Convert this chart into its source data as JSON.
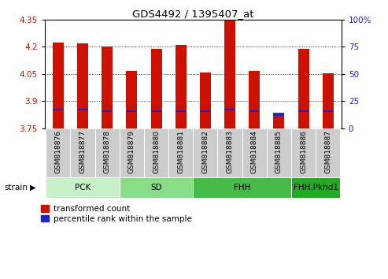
{
  "title": "GDS4492 / 1395407_at",
  "samples": [
    "GSM818876",
    "GSM818877",
    "GSM818878",
    "GSM818879",
    "GSM818880",
    "GSM818881",
    "GSM818882",
    "GSM818883",
    "GSM818884",
    "GSM818885",
    "GSM818886",
    "GSM818887"
  ],
  "red_values": [
    4.225,
    4.22,
    4.2,
    4.065,
    4.19,
    4.21,
    4.06,
    4.345,
    4.065,
    3.835,
    4.19,
    4.055
  ],
  "blue_values": [
    3.855,
    3.855,
    3.845,
    3.845,
    3.845,
    3.845,
    3.845,
    3.855,
    3.845,
    3.825,
    3.845,
    3.845
  ],
  "ymin": 3.75,
  "ymax": 4.35,
  "yticks_left": [
    3.75,
    3.9,
    4.05,
    4.2,
    4.35
  ],
  "yticks_right_vals": [
    0,
    25,
    50,
    75,
    100
  ],
  "yticks_right_labels": [
    "0",
    "25",
    "50",
    "75",
    "100%"
  ],
  "groups": [
    {
      "label": "PCK",
      "start": 0,
      "end": 2,
      "color": "#c8f0c8"
    },
    {
      "label": "SD",
      "start": 3,
      "end": 5,
      "color": "#88dd88"
    },
    {
      "label": "FHH",
      "start": 6,
      "end": 9,
      "color": "#44bb44"
    },
    {
      "label": "FHH.Pkhd1",
      "start": 10,
      "end": 11,
      "color": "#22aa22"
    }
  ],
  "bar_color": "#cc1100",
  "blue_color": "#2222cc",
  "bar_width": 0.45,
  "xlabel_color": "#cc1100",
  "ylabel_right_color": "#2222cc",
  "grid_color": "#000000",
  "xtick_bg_color": "#cccccc",
  "legend_red_label": "transformed count",
  "legend_blue_label": "percentile rank within the sample",
  "figure_bg": "#ffffff"
}
